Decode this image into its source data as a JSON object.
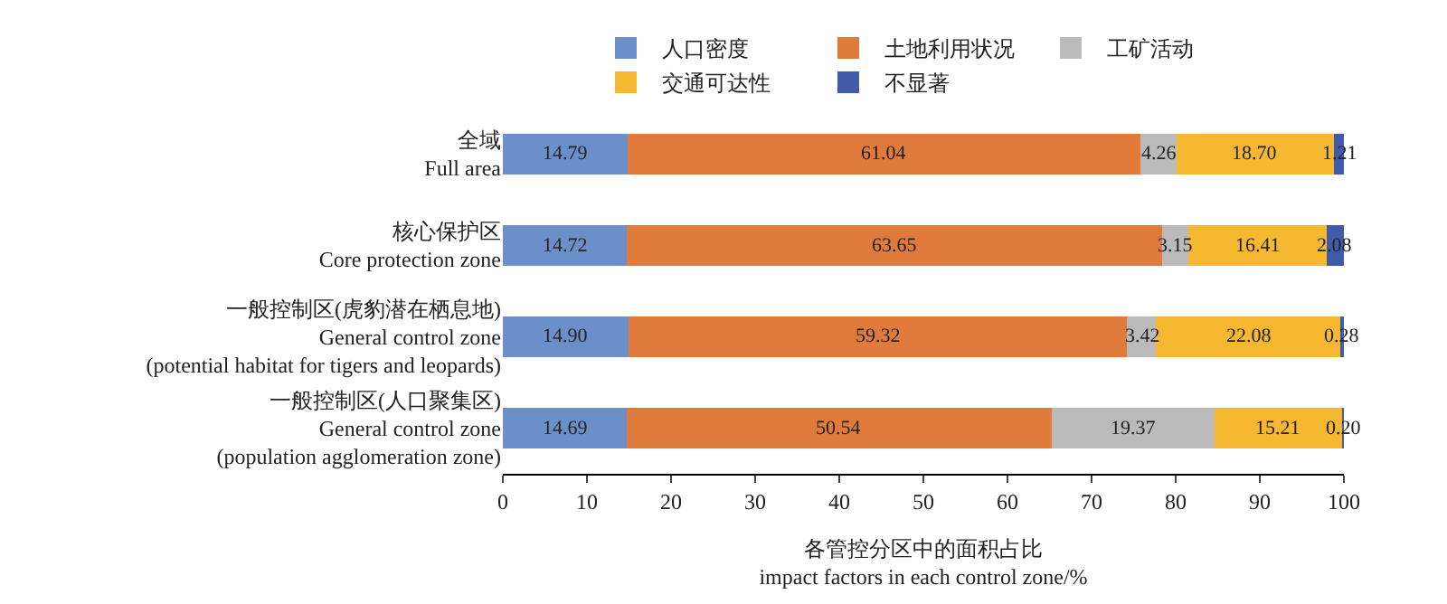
{
  "chart_data": {
    "type": "bar",
    "orientation": "horizontal",
    "stacked": true,
    "legend": "top",
    "xlabel": "各管控分区中的面积占比\nimpact factors in each control zone/%",
    "categories": [
      "全域\nFull area",
      "核心保护区\nCore protection zone",
      "一般控制区(虎豹潜在栖息地)\nGeneral control zone\n(potential habitat for tigers and leopards)",
      "一般控制区(人口聚集区)\nGeneral control zone\n(population agglomeration zone)"
    ],
    "xlim": [
      0,
      100
    ],
    "xticks": [
      0,
      10,
      20,
      30,
      40,
      50,
      60,
      70,
      80,
      90,
      100
    ],
    "series": [
      {
        "name": "人口密度",
        "color": "#6b8fc9",
        "values": [
          14.79,
          14.72,
          14.9,
          14.69
        ],
        "value_labels": [
          "14.79",
          "14.72",
          "14.90",
          "14.69"
        ]
      },
      {
        "name": "土地利用状况",
        "color": "#e07b3c",
        "values": [
          61.04,
          63.65,
          59.32,
          50.54
        ],
        "value_labels": [
          "61.04",
          "63.65",
          "59.32",
          "50.54"
        ]
      },
      {
        "name": "工矿活动",
        "color": "#bababa",
        "values": [
          4.26,
          3.15,
          3.42,
          19.37
        ],
        "value_labels": [
          "4.26",
          "3.15",
          "3.42",
          "19.37"
        ]
      },
      {
        "name": "交通可达性",
        "color": "#f6b731",
        "values": [
          18.7,
          16.41,
          22.08,
          15.21
        ],
        "value_labels": [
          "18.70",
          "16.41",
          "22.08",
          "15.21"
        ]
      },
      {
        "name": "不显著",
        "color": "#3f5ba9",
        "values": [
          1.21,
          2.08,
          0.28,
          0.2
        ],
        "value_labels": [
          "1.21",
          "2.08",
          "0.28",
          "0.20"
        ]
      }
    ]
  }
}
